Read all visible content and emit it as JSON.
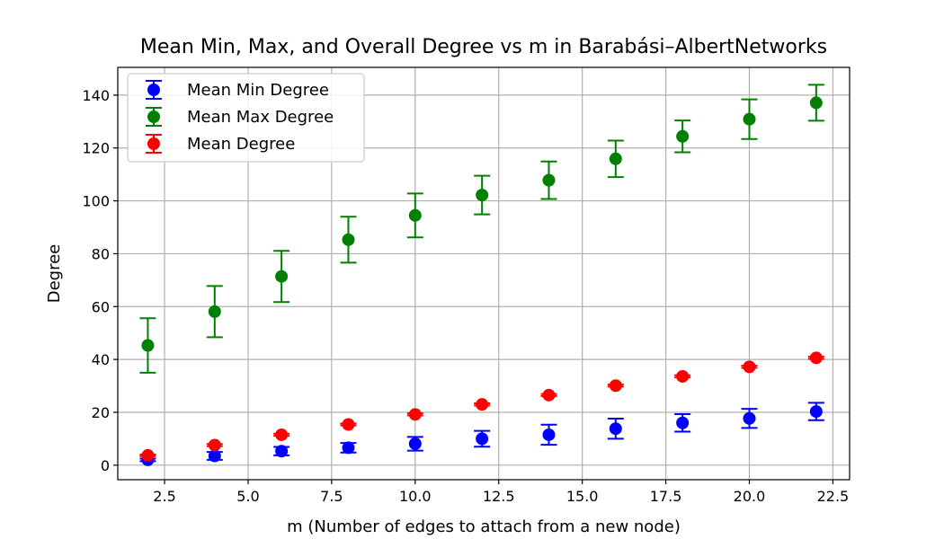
{
  "chart_data": {
    "type": "scatter",
    "title": "Mean Min, Max, and Overall Degree vs m in Barabási–AlbertNetworks",
    "xlabel": "m (Number of edges to attach from a new node)",
    "ylabel": "Degree",
    "xlim": [
      1.1,
      23.0
    ],
    "ylim": [
      -5.5,
      150.5
    ],
    "xticks": [
      2.5,
      5.0,
      7.5,
      10.0,
      12.5,
      15.0,
      17.5,
      20.0,
      22.5
    ],
    "xtick_labels": [
      "2.5",
      "5.0",
      "7.5",
      "10.0",
      "12.5",
      "15.0",
      "17.5",
      "20.0",
      "22.5"
    ],
    "yticks": [
      0,
      20,
      40,
      60,
      80,
      100,
      120,
      140
    ],
    "ytick_labels": [
      "0",
      "20",
      "40",
      "60",
      "80",
      "100",
      "120",
      "140"
    ],
    "grid": true,
    "legend_position": "top-left",
    "x": [
      2,
      4,
      6,
      8,
      10,
      12,
      14,
      16,
      18,
      20,
      22
    ],
    "series": [
      {
        "name": "Mean Min Degree",
        "color": "#0000ff",
        "values": [
          2.0,
          3.5,
          5.3,
          6.6,
          8.1,
          10.0,
          11.5,
          13.8,
          16.0,
          17.7,
          20.3
        ],
        "errors": [
          0.5,
          1.5,
          1.6,
          1.8,
          2.6,
          3.0,
          3.8,
          3.8,
          3.3,
          3.6,
          3.3
        ]
      },
      {
        "name": "Mean Max Degree",
        "color": "#008000",
        "values": [
          45.3,
          58.1,
          71.4,
          85.3,
          94.5,
          102.2,
          107.8,
          115.9,
          124.4,
          130.9,
          137.1
        ],
        "errors": [
          10.3,
          9.7,
          9.7,
          8.7,
          8.3,
          7.3,
          7.1,
          6.9,
          6.0,
          7.5,
          6.8
        ]
      },
      {
        "name": "Mean Degree",
        "color": "#ff0000",
        "values": [
          3.7,
          7.6,
          11.5,
          15.4,
          19.2,
          23.0,
          26.5,
          30.1,
          33.6,
          37.2,
          40.6
        ],
        "errors": [
          0.3,
          0.4,
          0.4,
          0.4,
          0.4,
          0.4,
          0.4,
          0.4,
          0.4,
          0.4,
          0.4
        ]
      }
    ]
  }
}
